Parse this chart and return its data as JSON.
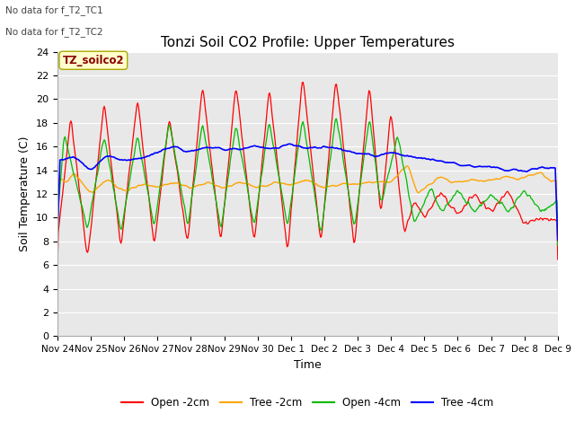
{
  "title": "Tonzi Soil CO2 Profile: Upper Temperatures",
  "xlabel": "Time",
  "ylabel": "Soil Temperature (C)",
  "ylim": [
    0,
    24
  ],
  "yticks": [
    0,
    2,
    4,
    6,
    8,
    10,
    12,
    14,
    16,
    18,
    20,
    22,
    24
  ],
  "annotations": [
    "No data for f_T2_TC1",
    "No data for f_T2_TC2"
  ],
  "legend_label": "TZ_soilco2",
  "fig_facecolor": "#ffffff",
  "plot_bg": "#e8e8e8",
  "line_colors": {
    "open2": "#ff0000",
    "tree2": "#ffa500",
    "open4": "#00bb00",
    "tree4": "#0000ff"
  },
  "legend_labels": [
    "Open -2cm",
    "Tree -2cm",
    "Open -4cm",
    "Tree -4cm"
  ],
  "xtick_labels": [
    "Nov 24",
    "Nov 25",
    "Nov 26",
    "Nov 27",
    "Nov 28",
    "Nov 29",
    "Nov 30",
    "Dec 1",
    "Dec 2",
    "Dec 3",
    "Dec 4",
    "Dec 5",
    "Dec 6",
    "Dec 7",
    "Dec 8",
    "Dec 9"
  ],
  "num_points": 600
}
